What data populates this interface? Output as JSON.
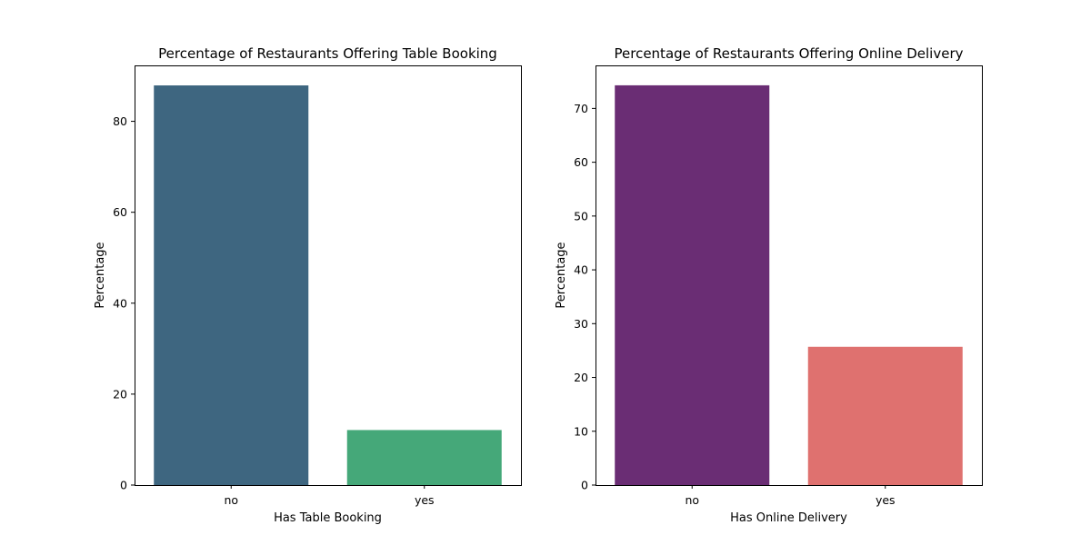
{
  "chart_data": [
    {
      "type": "bar",
      "title": "Percentage of Restaurants Offering Table Booking",
      "xlabel": "Has Table Booking",
      "ylabel": "Percentage",
      "categories": [
        "no",
        "yes"
      ],
      "values": [
        87.9,
        12.1
      ],
      "colors": [
        "#3e6680",
        "#45a879"
      ],
      "ylim": [
        0,
        92.3
      ],
      "yticks": [
        0,
        20,
        40,
        60,
        80
      ],
      "grid": false,
      "legend": "none"
    },
    {
      "type": "bar",
      "title": "Percentage of Restaurants Offering Online Delivery",
      "xlabel": "Has Online Delivery",
      "ylabel": "Percentage",
      "categories": [
        "no",
        "yes"
      ],
      "values": [
        74.3,
        25.7
      ],
      "colors": [
        "#6a2d74",
        "#df716f"
      ],
      "ylim": [
        0,
        78.0
      ],
      "yticks": [
        0,
        10,
        20,
        30,
        40,
        50,
        60,
        70
      ],
      "grid": false,
      "legend": "none"
    }
  ]
}
